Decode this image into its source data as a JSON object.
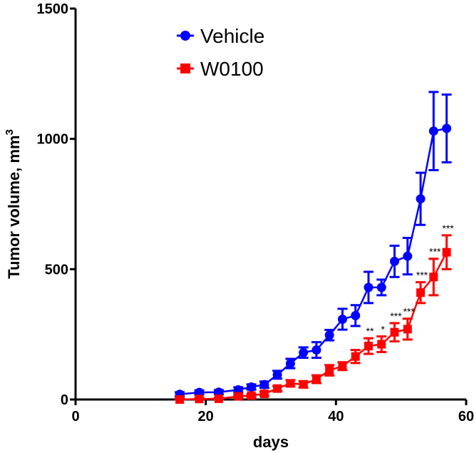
{
  "chart_data": {
    "type": "line",
    "title": "",
    "xlabel": "days",
    "ylabel": "Tumor volume, mm",
    "ylabel_superscript": "3",
    "xlim": [
      0,
      60
    ],
    "ylim": [
      0,
      1500
    ],
    "xticks": [
      0,
      20,
      40,
      60
    ],
    "yticks": [
      0,
      500,
      1000,
      1500
    ],
    "legend_position": "top-center",
    "series": [
      {
        "name": "Vehicle",
        "color": "#0000ff",
        "marker": "circle",
        "x": [
          16,
          19,
          22,
          25,
          27,
          29,
          31,
          33,
          35,
          37,
          39,
          41,
          43,
          45,
          47,
          49,
          51,
          53,
          55,
          57
        ],
        "values": [
          20,
          27,
          28,
          37,
          48,
          57,
          95,
          138,
          180,
          190,
          247,
          308,
          322,
          430,
          430,
          530,
          550,
          770,
          1030,
          1040
        ],
        "errors": [
          8,
          8,
          8,
          10,
          10,
          12,
          15,
          18,
          20,
          30,
          20,
          40,
          40,
          60,
          30,
          60,
          70,
          100,
          150,
          130
        ]
      },
      {
        "name": "W0100",
        "color": "#ff0000",
        "marker": "square",
        "x": [
          16,
          19,
          22,
          25,
          27,
          29,
          31,
          33,
          35,
          37,
          39,
          41,
          43,
          45,
          47,
          49,
          51,
          53,
          55,
          57
        ],
        "values": [
          0,
          2,
          3,
          12,
          15,
          22,
          42,
          62,
          58,
          78,
          112,
          128,
          165,
          205,
          212,
          258,
          270,
          410,
          470,
          565
        ],
        "errors": [
          4,
          4,
          4,
          6,
          6,
          8,
          10,
          12,
          12,
          15,
          20,
          15,
          25,
          30,
          30,
          35,
          40,
          40,
          70,
          65
        ]
      }
    ],
    "annotations": [
      {
        "text": "**",
        "x": 45
      },
      {
        "text": "*",
        "x": 47
      },
      {
        "text": "***",
        "x": 49
      },
      {
        "text": "***",
        "x": 51
      },
      {
        "text": "***",
        "x": 53
      },
      {
        "text": "***",
        "x": 55
      },
      {
        "text": "***",
        "x": 57
      }
    ]
  }
}
